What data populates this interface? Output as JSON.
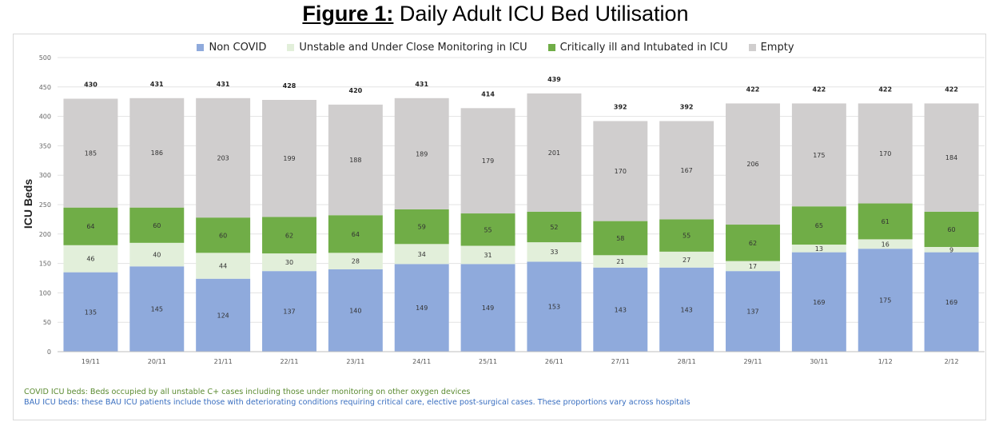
{
  "figure": {
    "label": "Figure 1:",
    "title": " Daily Adult ICU Bed Utilisation"
  },
  "legend": [
    {
      "name": "Non COVID",
      "color": "#8faadc"
    },
    {
      "name": "Unstable and Under Close Monitoring in ICU",
      "color": "#e2efda"
    },
    {
      "name": "Critically ill and Intubated in ICU",
      "color": "#70ad47"
    },
    {
      "name": "Empty",
      "color": "#d0cece"
    }
  ],
  "notes": {
    "covid": "COVID ICU beds: Beds occupied by all unstable C+ cases including those under monitoring on other oxygen devices",
    "bau": "BAU ICU beds: these BAU ICU patients include those with deteriorating conditions requiring critical care, elective post-surgical cases. These proportions vary across hospitals"
  },
  "chart_data": {
    "type": "bar",
    "stacked": true,
    "ylabel": "ICU Beds",
    "ylim": [
      0,
      500
    ],
    "yticks": [
      0,
      50,
      100,
      150,
      200,
      250,
      300,
      350,
      400,
      450,
      500
    ],
    "grid": true,
    "legend_position": "top",
    "categories": [
      "19/11",
      "20/11",
      "21/11",
      "22/11",
      "23/11",
      "24/11",
      "25/11",
      "26/11",
      "27/11",
      "28/11",
      "29/11",
      "30/11",
      "1/12",
      "2/12"
    ],
    "series": [
      {
        "name": "Non COVID",
        "color": "#8faadc",
        "values": [
          135,
          145,
          124,
          137,
          140,
          149,
          149,
          153,
          143,
          143,
          137,
          169,
          175,
          169
        ]
      },
      {
        "name": "Unstable and Under Close Monitoring in ICU",
        "color": "#e2efda",
        "values": [
          46,
          40,
          44,
          30,
          28,
          34,
          31,
          33,
          21,
          27,
          17,
          13,
          16,
          9
        ]
      },
      {
        "name": "Critically ill and Intubated in ICU",
        "color": "#70ad47",
        "values": [
          64,
          60,
          60,
          62,
          64,
          59,
          55,
          52,
          58,
          55,
          62,
          65,
          61,
          60
        ]
      },
      {
        "name": "Empty",
        "color": "#d0cece",
        "values": [
          185,
          186,
          203,
          199,
          188,
          189,
          179,
          201,
          170,
          167,
          206,
          175,
          170,
          184
        ]
      }
    ],
    "totals": [
      430,
      431,
      431,
      428,
      420,
      431,
      414,
      439,
      392,
      392,
      422,
      422,
      422,
      422
    ]
  }
}
